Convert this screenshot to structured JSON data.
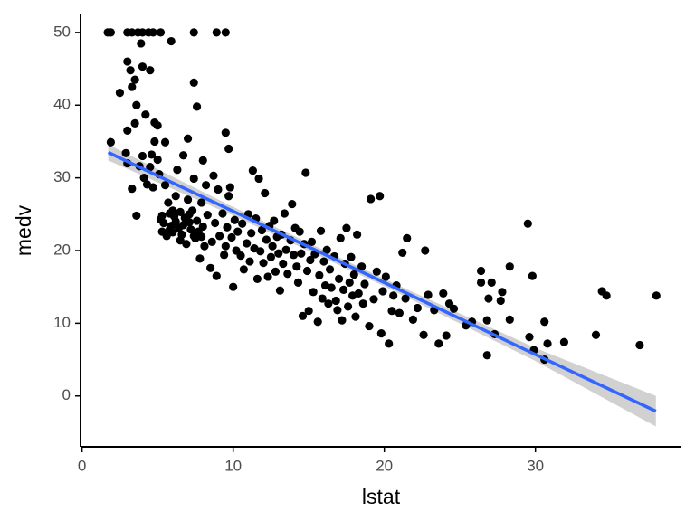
{
  "chart_data": {
    "type": "scatter",
    "xlabel": "lstat",
    "ylabel": "medv",
    "xlim": [
      -0.1,
      39.6
    ],
    "ylim": [
      -7,
      52.6
    ],
    "xticks": [
      0,
      10,
      20,
      30
    ],
    "yticks": [
      0,
      10,
      20,
      30,
      40,
      50
    ],
    "color": "#000000",
    "x": [
      1.7,
      1.9,
      3.0,
      3.3,
      3.7,
      4.0,
      4.4,
      4.7,
      5.2,
      7.4,
      8.9,
      9.5,
      2.5,
      3.0,
      3.2,
      3.5,
      3.3,
      3.9,
      4.0,
      4.5,
      3.6,
      5.9,
      7.4,
      7.6,
      9.5,
      9.7,
      4.2,
      4.8,
      5.0,
      3.0,
      3.5,
      1.9,
      2.9,
      3.0,
      3.3,
      3.6,
      3.8,
      4.0,
      4.1,
      4.3,
      4.5,
      4.6,
      4.7,
      4.8,
      5.0,
      5.1,
      5.2,
      5.3,
      5.4,
      5.5,
      5.5,
      5.7,
      5.8,
      5.9,
      6.0,
      6.1,
      6.2,
      6.3,
      6.4,
      6.5,
      6.6,
      6.7,
      6.8,
      6.9,
      7.0,
      7.0,
      7.1,
      7.2,
      7.3,
      7.4,
      7.5,
      7.6,
      7.7,
      7.8,
      7.9,
      8.0,
      8.0,
      8.1,
      8.2,
      8.3,
      8.5,
      8.6,
      8.7,
      8.8,
      8.9,
      9.0,
      9.1,
      9.3,
      9.4,
      9.5,
      9.6,
      9.7,
      9.8,
      9.9,
      10.0,
      10.1,
      10.2,
      10.3,
      10.5,
      10.6,
      10.7,
      10.9,
      11.0,
      11.1,
      11.2,
      11.3,
      11.4,
      11.5,
      11.6,
      11.7,
      11.8,
      11.9,
      12.0,
      12.1,
      12.2,
      12.3,
      12.4,
      12.5,
      12.6,
      12.7,
      12.8,
      12.9,
      13.0,
      13.1,
      13.2,
      13.3,
      13.4,
      13.5,
      13.6,
      13.8,
      13.9,
      14.0,
      14.1,
      14.2,
      14.3,
      14.4,
      14.5,
      14.6,
      14.7,
      14.8,
      14.9,
      15.0,
      15.1,
      15.2,
      15.3,
      15.4,
      15.6,
      15.7,
      15.8,
      15.9,
      16.0,
      16.1,
      16.2,
      16.3,
      16.4,
      16.5,
      16.7,
      16.8,
      16.9,
      17.0,
      17.1,
      17.2,
      17.3,
      17.4,
      17.5,
      17.6,
      17.7,
      17.8,
      17.9,
      18.0,
      18.1,
      18.2,
      18.3,
      18.5,
      18.6,
      18.7,
      19.0,
      19.1,
      19.3,
      19.5,
      19.7,
      19.8,
      19.9,
      20.1,
      20.3,
      20.5,
      20.6,
      20.8,
      21.0,
      21.2,
      21.4,
      21.5,
      21.9,
      22.2,
      22.6,
      22.7,
      22.9,
      23.3,
      23.6,
      23.9,
      24.1,
      24.3,
      24.6,
      25.4,
      25.8,
      26.4,
      26.4,
      26.8,
      26.8,
      26.9,
      27.1,
      27.3,
      27.7,
      27.8,
      28.3,
      28.3,
      29.5,
      29.6,
      29.8,
      29.9,
      30.6,
      30.6,
      30.8,
      31.9,
      34.0,
      34.4,
      34.7,
      36.9,
      38.0,
      5.3,
      5.8,
      6.2,
      6.7,
      7.1,
      7.4,
      5.6,
      6.0,
      6.5,
      7.9
    ],
    "values": [
      50,
      50,
      50,
      50,
      50,
      50,
      50,
      50,
      50,
      50,
      50,
      50,
      41.7,
      46,
      44.8,
      43.5,
      42.5,
      48.5,
      45.3,
      44.8,
      40,
      48.8,
      43.1,
      39.8,
      36.2,
      34,
      38.7,
      37.6,
      37.2,
      36.5,
      37.5,
      34.9,
      33.4,
      32,
      28.5,
      24.8,
      31.6,
      33,
      30,
      29.1,
      31.5,
      33.2,
      28.7,
      35,
      32.5,
      30.5,
      24.3,
      22.6,
      23.8,
      29,
      34.9,
      26.6,
      25.1,
      23.4,
      22.5,
      24.7,
      27.5,
      31.1,
      23.1,
      25.3,
      22.2,
      33.1,
      24.5,
      20.9,
      35.4,
      27,
      23.9,
      22.9,
      25.5,
      29.9,
      21.7,
      24.1,
      22.6,
      18.9,
      26.6,
      32.4,
      23.3,
      20.6,
      29,
      24.9,
      17.6,
      21.2,
      30.3,
      23.8,
      16.5,
      28.4,
      22,
      25.1,
      19.4,
      20.6,
      23.2,
      27.5,
      28.7,
      21.8,
      15,
      24.2,
      20,
      22.6,
      19.3,
      23.7,
      17.4,
      21,
      25,
      18.5,
      22.4,
      31,
      20.3,
      24.4,
      16.1,
      29.9,
      19.9,
      22.8,
      18.3,
      27.9,
      21.5,
      16.4,
      23.4,
      19.1,
      20.6,
      24.1,
      17.1,
      21.9,
      19.6,
      14.5,
      22.2,
      18.2,
      25.1,
      20.1,
      16.8,
      21.4,
      26.4,
      19.4,
      23.1,
      17.8,
      15.6,
      22.6,
      19.6,
      11.0,
      20.9,
      30.7,
      17.2,
      11.7,
      18.7,
      21.2,
      14.3,
      19.5,
      10.2,
      16.6,
      22.7,
      13.4,
      18.5,
      15.2,
      20.1,
      12.7,
      17.4,
      14.9,
      19.2,
      13.1,
      11.8,
      16.1,
      21.7,
      10.4,
      14.6,
      18.2,
      23.1,
      12.3,
      15.6,
      19.1,
      13.8,
      16.7,
      10.9,
      22.2,
      14.1,
      17.8,
      12.7,
      15.4,
      9.6,
      27.1,
      13.3,
      17.1,
      27.5,
      8.6,
      14.4,
      16.4,
      7.2,
      11.7,
      13.8,
      15.2,
      11.4,
      19.7,
      13.4,
      21.7,
      10.5,
      12.1,
      8.4,
      20,
      13.9,
      11.8,
      7.2,
      14.1,
      8.3,
      12.7,
      12.0,
      9.7,
      10.2,
      17.2,
      15.6,
      5.6,
      10.4,
      13.4,
      15.6,
      8.5,
      13.1,
      14.3,
      17.8,
      10.5,
      23.7,
      8.1,
      16.5,
      6.3,
      10.2,
      5.0,
      7.2,
      7.4,
      8.4,
      14.4,
      13.8,
      7.0,
      13.8,
      24.8,
      22.9,
      24.0,
      23.5,
      25.0,
      22.0,
      22.0,
      25.5,
      21.4,
      21.9
    ],
    "fit": {
      "color": "#3366FF",
      "band_color": "#999999",
      "x": [
        1.73,
        10,
        20,
        30,
        37.97
      ],
      "y": [
        33.5,
        25.4,
        15.6,
        5.7,
        -2.1
      ],
      "lower": [
        32.4,
        24.8,
        15.1,
        4.8,
        -4.2
      ],
      "upper": [
        34.6,
        26.0,
        16.1,
        6.6,
        0.0
      ]
    }
  }
}
